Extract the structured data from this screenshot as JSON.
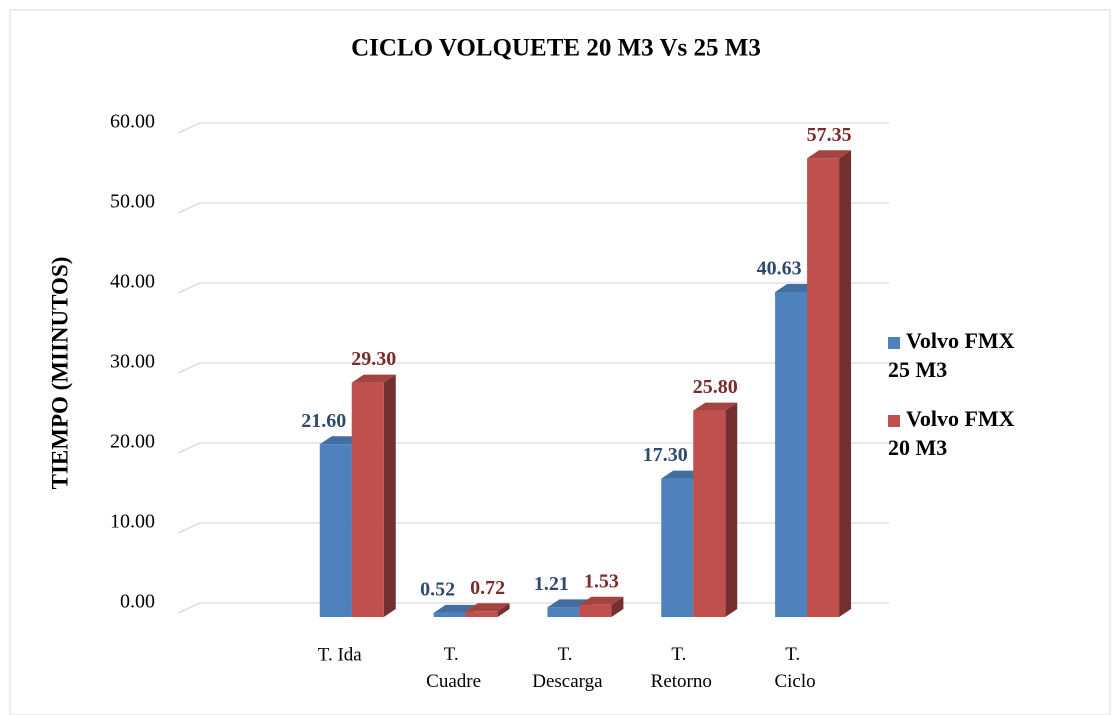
{
  "chart_data": {
    "type": "bar3d",
    "title": "CICLO VOLQUETE 20 M3 Vs 25 M3",
    "y_label": "TIEMPO (MIINUTOS)",
    "categories": [
      null,
      "T. Ida",
      "T. Cuadre",
      "T. Descarga",
      "T. Retorno",
      "T. Ciclo"
    ],
    "series": [
      {
        "name": "Volvo FMX 25 M3",
        "color": "#4f81bd",
        "label_color": "#2e4a6e",
        "values": [
          null,
          21.6,
          0.52,
          1.21,
          17.3,
          40.63
        ],
        "value_labels": [
          null,
          "21.60",
          "0.52",
          "1.21",
          "17.30",
          "40.63"
        ]
      },
      {
        "name": "Volvo FMX 20 M3",
        "color": "#c0504d",
        "label_color": "#7b2c2a",
        "values": [
          null,
          29.3,
          0.72,
          1.53,
          25.8,
          57.35
        ],
        "value_labels": [
          null,
          "29.30",
          "0.72",
          "1.53",
          "25.80",
          "57.35"
        ]
      }
    ],
    "ylim": [
      0,
      60
    ],
    "yticks": [
      {
        "value": 0,
        "label": "0.00"
      },
      {
        "value": 10,
        "label": "10.00"
      },
      {
        "value": 20,
        "label": "20.00"
      },
      {
        "value": 30,
        "label": "30.00"
      },
      {
        "value": 40,
        "label": "40.00"
      },
      {
        "value": 50,
        "label": "50.00"
      },
      {
        "value": 60,
        "label": "60.00"
      }
    ],
    "grid": true,
    "legend": "right"
  }
}
